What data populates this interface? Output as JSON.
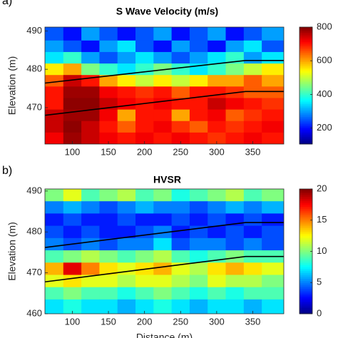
{
  "chart_data": [
    {
      "type": "heatmap",
      "panel_label": "a)",
      "title": "S Wave Velocity (m/s)",
      "ylabel": "Elevation (m)",
      "colormap": "jet",
      "clim": [
        105,
        800
      ],
      "cbticks": [
        200,
        400,
        600,
        800
      ],
      "xlim": [
        62,
        393
      ],
      "xticks": [
        100,
        150,
        200,
        250,
        300,
        350
      ],
      "ylim": [
        460.5,
        491
      ],
      "yticks": [
        470,
        480,
        490
      ],
      "x": [
        75,
        100,
        125,
        150,
        175,
        200,
        225,
        250,
        275,
        300,
        325,
        350,
        375
      ],
      "y": [
        489,
        486,
        483,
        480,
        477,
        474,
        471,
        468,
        465,
        462
      ],
      "z": [
        [
          250,
          200,
          300,
          250,
          200,
          250,
          300,
          200,
          250,
          300,
          200,
          250,
          300
        ],
        [
          300,
          250,
          200,
          300,
          350,
          250,
          200,
          300,
          250,
          200,
          300,
          350,
          250
        ],
        [
          350,
          400,
          300,
          250,
          300,
          350,
          300,
          250,
          300,
          350,
          400,
          300,
          350
        ],
        [
          550,
          600,
          450,
          400,
          350,
          400,
          450,
          400,
          350,
          400,
          450,
          500,
          550
        ],
        [
          650,
          750,
          700,
          600,
          550,
          500,
          550,
          500,
          550,
          600,
          600,
          650,
          600
        ],
        [
          700,
          780,
          780,
          720,
          700,
          680,
          700,
          650,
          700,
          700,
          680,
          650,
          650
        ],
        [
          700,
          790,
          790,
          750,
          720,
          700,
          720,
          700,
          700,
          750,
          720,
          700,
          680
        ],
        [
          750,
          780,
          780,
          720,
          600,
          700,
          700,
          600,
          700,
          720,
          650,
          680,
          700
        ],
        [
          750,
          790,
          750,
          700,
          650,
          700,
          720,
          680,
          650,
          700,
          680,
          700,
          720
        ],
        [
          720,
          780,
          750,
          720,
          700,
          720,
          700,
          720,
          700,
          680,
          700,
          720,
          700
        ]
      ],
      "lines": [
        {
          "color": "#000000",
          "x": [
            62,
            340,
            393
          ],
          "y": [
            476.4,
            482.3,
            482.3
          ]
        },
        {
          "color": "#000000",
          "x": [
            62,
            340,
            393
          ],
          "y": [
            468.0,
            474.2,
            474.2
          ]
        }
      ]
    },
    {
      "type": "heatmap",
      "panel_label": "b)",
      "title": "HVSR",
      "ylabel": "Elevation (m)",
      "xlabel": "Distance (m)",
      "colormap": "jet",
      "clim": [
        0,
        20
      ],
      "cbticks": [
        0,
        5,
        10,
        15,
        20
      ],
      "xlim": [
        62,
        393
      ],
      "xticks": [
        100,
        150,
        200,
        250,
        300,
        350
      ],
      "ylim": [
        460,
        490.5
      ],
      "yticks": [
        460,
        470,
        480,
        490
      ],
      "x": [
        75,
        100,
        125,
        150,
        175,
        200,
        225,
        250,
        275,
        300,
        325,
        350,
        375
      ],
      "y": [
        489,
        486,
        483,
        480,
        477,
        474,
        471,
        468,
        465,
        462
      ],
      "z": [
        [
          10,
          12,
          9,
          10,
          11,
          9,
          10,
          8,
          9,
          10,
          11,
          9,
          10
        ],
        [
          5,
          6,
          5,
          4,
          5,
          6,
          5,
          5,
          4,
          5,
          6,
          5,
          6
        ],
        [
          3,
          4,
          3,
          3,
          4,
          3,
          3,
          4,
          3,
          4,
          3,
          4,
          3
        ],
        [
          4,
          3,
          4,
          3,
          3,
          4,
          5,
          3,
          4,
          3,
          4,
          3,
          4
        ],
        [
          5,
          4,
          5,
          4,
          5,
          5,
          7,
          4,
          5,
          5,
          4,
          5,
          4
        ],
        [
          9,
          10,
          11,
          10,
          9,
          10,
          11,
          9,
          8,
          9,
          10,
          9,
          9
        ],
        [
          14,
          18,
          15,
          13,
          12,
          13,
          14,
          12,
          11,
          13,
          14,
          13,
          12
        ],
        [
          12,
          13,
          12,
          12,
          11,
          12,
          12,
          11,
          10,
          12,
          11,
          11,
          10
        ],
        [
          9,
          10,
          9,
          9,
          8,
          9,
          10,
          9,
          8,
          9,
          8,
          9,
          9
        ],
        [
          7,
          8,
          7,
          7,
          6,
          7,
          8,
          7,
          6,
          7,
          7,
          6,
          7
        ]
      ],
      "lines": [
        {
          "color": "#000000",
          "x": [
            62,
            340,
            393
          ],
          "y": [
            476.2,
            482.3,
            482.3
          ]
        },
        {
          "color": "#000000",
          "x": [
            62,
            340,
            393
          ],
          "y": [
            467.8,
            474.0,
            474.0
          ]
        }
      ]
    }
  ]
}
